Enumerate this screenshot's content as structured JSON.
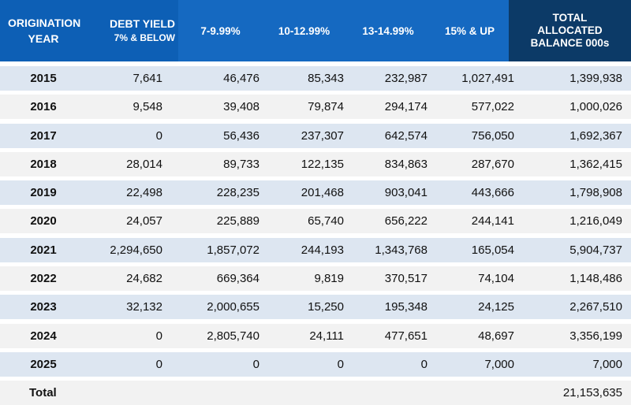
{
  "header": {
    "origination_year": "ORIGINATION YEAR",
    "debt_yield_line1": "DEBT YIELD",
    "debt_yield_line2": "7% & BELOW",
    "col_7_9": "7-9.99%",
    "col_10_12": "10-12.99%",
    "col_13_14": "13-14.99%",
    "col_15_up": "15% & UP",
    "total_allocated": "TOTAL ALLOCATED BALANCE 000s"
  },
  "rows": [
    {
      "year": "2015",
      "c1": "7,641",
      "c2": "46,476",
      "c3": "85,343",
      "c4": "232,987",
      "c5": "1,027,491",
      "total": "1,399,938"
    },
    {
      "year": "2016",
      "c1": "9,548",
      "c2": "39,408",
      "c3": "79,874",
      "c4": "294,174",
      "c5": "577,022",
      "total": "1,000,026"
    },
    {
      "year": "2017",
      "c1": "0",
      "c2": "56,436",
      "c3": "237,307",
      "c4": "642,574",
      "c5": "756,050",
      "total": "1,692,367"
    },
    {
      "year": "2018",
      "c1": "28,014",
      "c2": "89,733",
      "c3": "122,135",
      "c4": "834,863",
      "c5": "287,670",
      "total": "1,362,415"
    },
    {
      "year": "2019",
      "c1": "22,498",
      "c2": "228,235",
      "c3": "201,468",
      "c4": "903,041",
      "c5": "443,666",
      "total": "1,798,908"
    },
    {
      "year": "2020",
      "c1": "24,057",
      "c2": "225,889",
      "c3": "65,740",
      "c4": "656,222",
      "c5": "244,141",
      "total": "1,216,049"
    },
    {
      "year": "2021",
      "c1": "2,294,650",
      "c2": "1,857,072",
      "c3": "244,193",
      "c4": "1,343,768",
      "c5": "165,054",
      "total": "5,904,737"
    },
    {
      "year": "2022",
      "c1": "24,682",
      "c2": "669,364",
      "c3": "9,819",
      "c4": "370,517",
      "c5": "74,104",
      "total": "1,148,486"
    },
    {
      "year": "2023",
      "c1": "32,132",
      "c2": "2,000,655",
      "c3": "15,250",
      "c4": "195,348",
      "c5": "24,125",
      "total": "2,267,510"
    },
    {
      "year": "2024",
      "c1": "0",
      "c2": "2,805,740",
      "c3": "24,111",
      "c4": "477,651",
      "c5": "48,697",
      "total": "3,356,199"
    },
    {
      "year": "2025",
      "c1": "0",
      "c2": "0",
      "c3": "0",
      "c4": "0",
      "c5": "7,000",
      "total": "7,000"
    }
  ],
  "total_row": {
    "label": "Total",
    "total": "21,153,635"
  },
  "colors": {
    "header_blue": "#1569c1",
    "header_dark": "#0c3a67",
    "row_blue": "#dde6f1",
    "row_gray": "#f2f2f2"
  }
}
